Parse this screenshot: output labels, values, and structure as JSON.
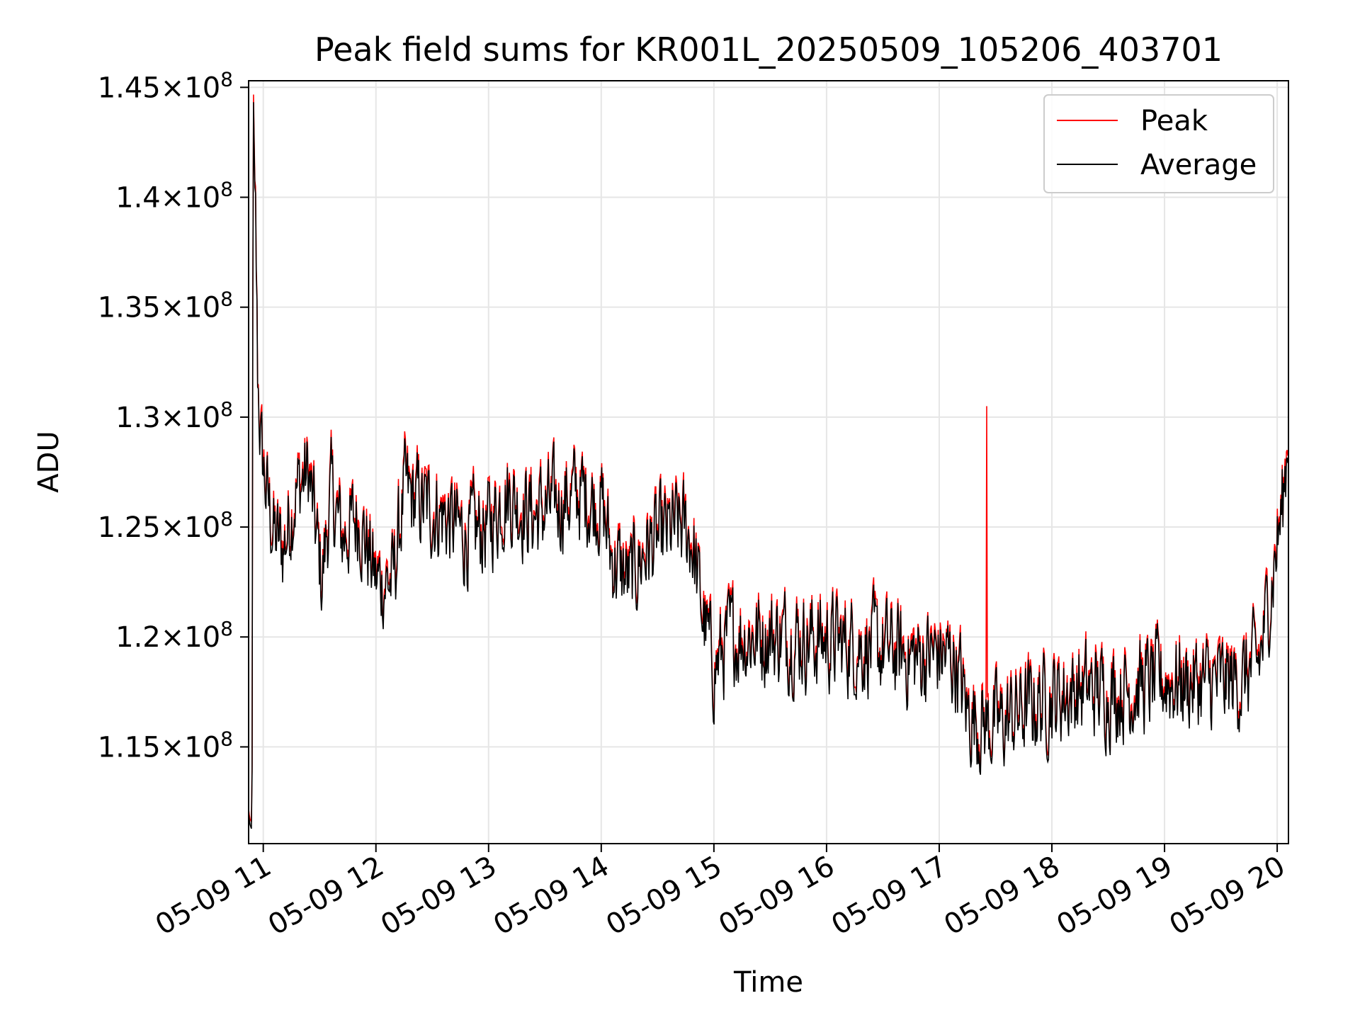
{
  "chart_data": {
    "type": "line",
    "title": "Peak field sums for KR001L_20250509_105206_403701",
    "xlabel": "Time",
    "ylabel": "ADU",
    "grid": true,
    "legend_position": "top-right",
    "x_unit": "hours since 2025-05-09 00:00",
    "xlim": [
      10.87,
      20.1
    ],
    "ylim": [
      110600000,
      145300000
    ],
    "x_ticks": [
      {
        "value": 11,
        "label": "05-09 11"
      },
      {
        "value": 12,
        "label": "05-09 12"
      },
      {
        "value": 13,
        "label": "05-09 13"
      },
      {
        "value": 14,
        "label": "05-09 14"
      },
      {
        "value": 15,
        "label": "05-09 15"
      },
      {
        "value": 16,
        "label": "05-09 16"
      },
      {
        "value": 17,
        "label": "05-09 17"
      },
      {
        "value": 18,
        "label": "05-09 18"
      },
      {
        "value": 19,
        "label": "05-09 19"
      },
      {
        "value": 20,
        "label": "05-09 20"
      }
    ],
    "y_ticks": [
      {
        "value": 115000000,
        "mantissa": "1.15",
        "exponent": "8"
      },
      {
        "value": 120000000,
        "mantissa": "1.2",
        "exponent": "8"
      },
      {
        "value": 125000000,
        "mantissa": "1.25",
        "exponent": "8"
      },
      {
        "value": 130000000,
        "mantissa": "1.3",
        "exponent": "8"
      },
      {
        "value": 135000000,
        "mantissa": "1.35",
        "exponent": "8"
      },
      {
        "value": 140000000,
        "mantissa": "1.4",
        "exponent": "8"
      },
      {
        "value": 145000000,
        "mantissa": "1.45",
        "exponent": "8"
      }
    ],
    "series": [
      {
        "name": "Peak",
        "color": "#ff0000",
        "offset": 250000,
        "spikes": [
          [
            17.42,
            130500000
          ]
        ]
      },
      {
        "name": "Average",
        "color": "#000000",
        "offset": 0,
        "spikes": []
      }
    ],
    "trend_points": [
      [
        10.87,
        112000000
      ],
      [
        10.88,
        111500000
      ],
      [
        10.9,
        111200000
      ],
      [
        10.91,
        145300000
      ],
      [
        10.93,
        139000000
      ],
      [
        10.95,
        132000000
      ],
      [
        10.98,
        128500000
      ],
      [
        11.03,
        126500000
      ],
      [
        11.1,
        124500000
      ],
      [
        11.18,
        124000000
      ],
      [
        11.28,
        126500000
      ],
      [
        11.4,
        127500000
      ],
      [
        11.52,
        122500000
      ],
      [
        11.6,
        126500000
      ],
      [
        11.7,
        124500000
      ],
      [
        11.85,
        125500000
      ],
      [
        12.0,
        122500000
      ],
      [
        12.15,
        122500000
      ],
      [
        12.25,
        126500000
      ],
      [
        12.4,
        126000000
      ],
      [
        12.6,
        125500000
      ],
      [
        12.8,
        124500000
      ],
      [
        13.0,
        125000000
      ],
      [
        13.15,
        126500000
      ],
      [
        13.4,
        125500000
      ],
      [
        13.6,
        126000000
      ],
      [
        13.8,
        126500000
      ],
      [
        14.0,
        126000000
      ],
      [
        14.1,
        123500000
      ],
      [
        14.25,
        122500000
      ],
      [
        14.4,
        124000000
      ],
      [
        14.55,
        124500000
      ],
      [
        14.7,
        125000000
      ],
      [
        14.8,
        124500000
      ],
      [
        14.9,
        121000000
      ],
      [
        15.0,
        118500000
      ],
      [
        15.15,
        120000000
      ],
      [
        15.35,
        120000000
      ],
      [
        15.6,
        120000000
      ],
      [
        16.0,
        119800000
      ],
      [
        16.4,
        119500000
      ],
      [
        16.8,
        119000000
      ],
      [
        17.0,
        119200000
      ],
      [
        17.15,
        118800000
      ],
      [
        17.25,
        116500000
      ],
      [
        17.4,
        116000000
      ],
      [
        17.55,
        116000000
      ],
      [
        17.7,
        116500000
      ],
      [
        17.9,
        117000000
      ],
      [
        18.2,
        117500000
      ],
      [
        18.6,
        117500000
      ],
      [
        19.0,
        118000000
      ],
      [
        19.4,
        117800000
      ],
      [
        19.7,
        118000000
      ],
      [
        19.85,
        119000000
      ],
      [
        19.95,
        122500000
      ],
      [
        20.05,
        126000000
      ],
      [
        20.1,
        129500000
      ]
    ],
    "noise_amplitude": 1900000,
    "samples": 1500
  }
}
